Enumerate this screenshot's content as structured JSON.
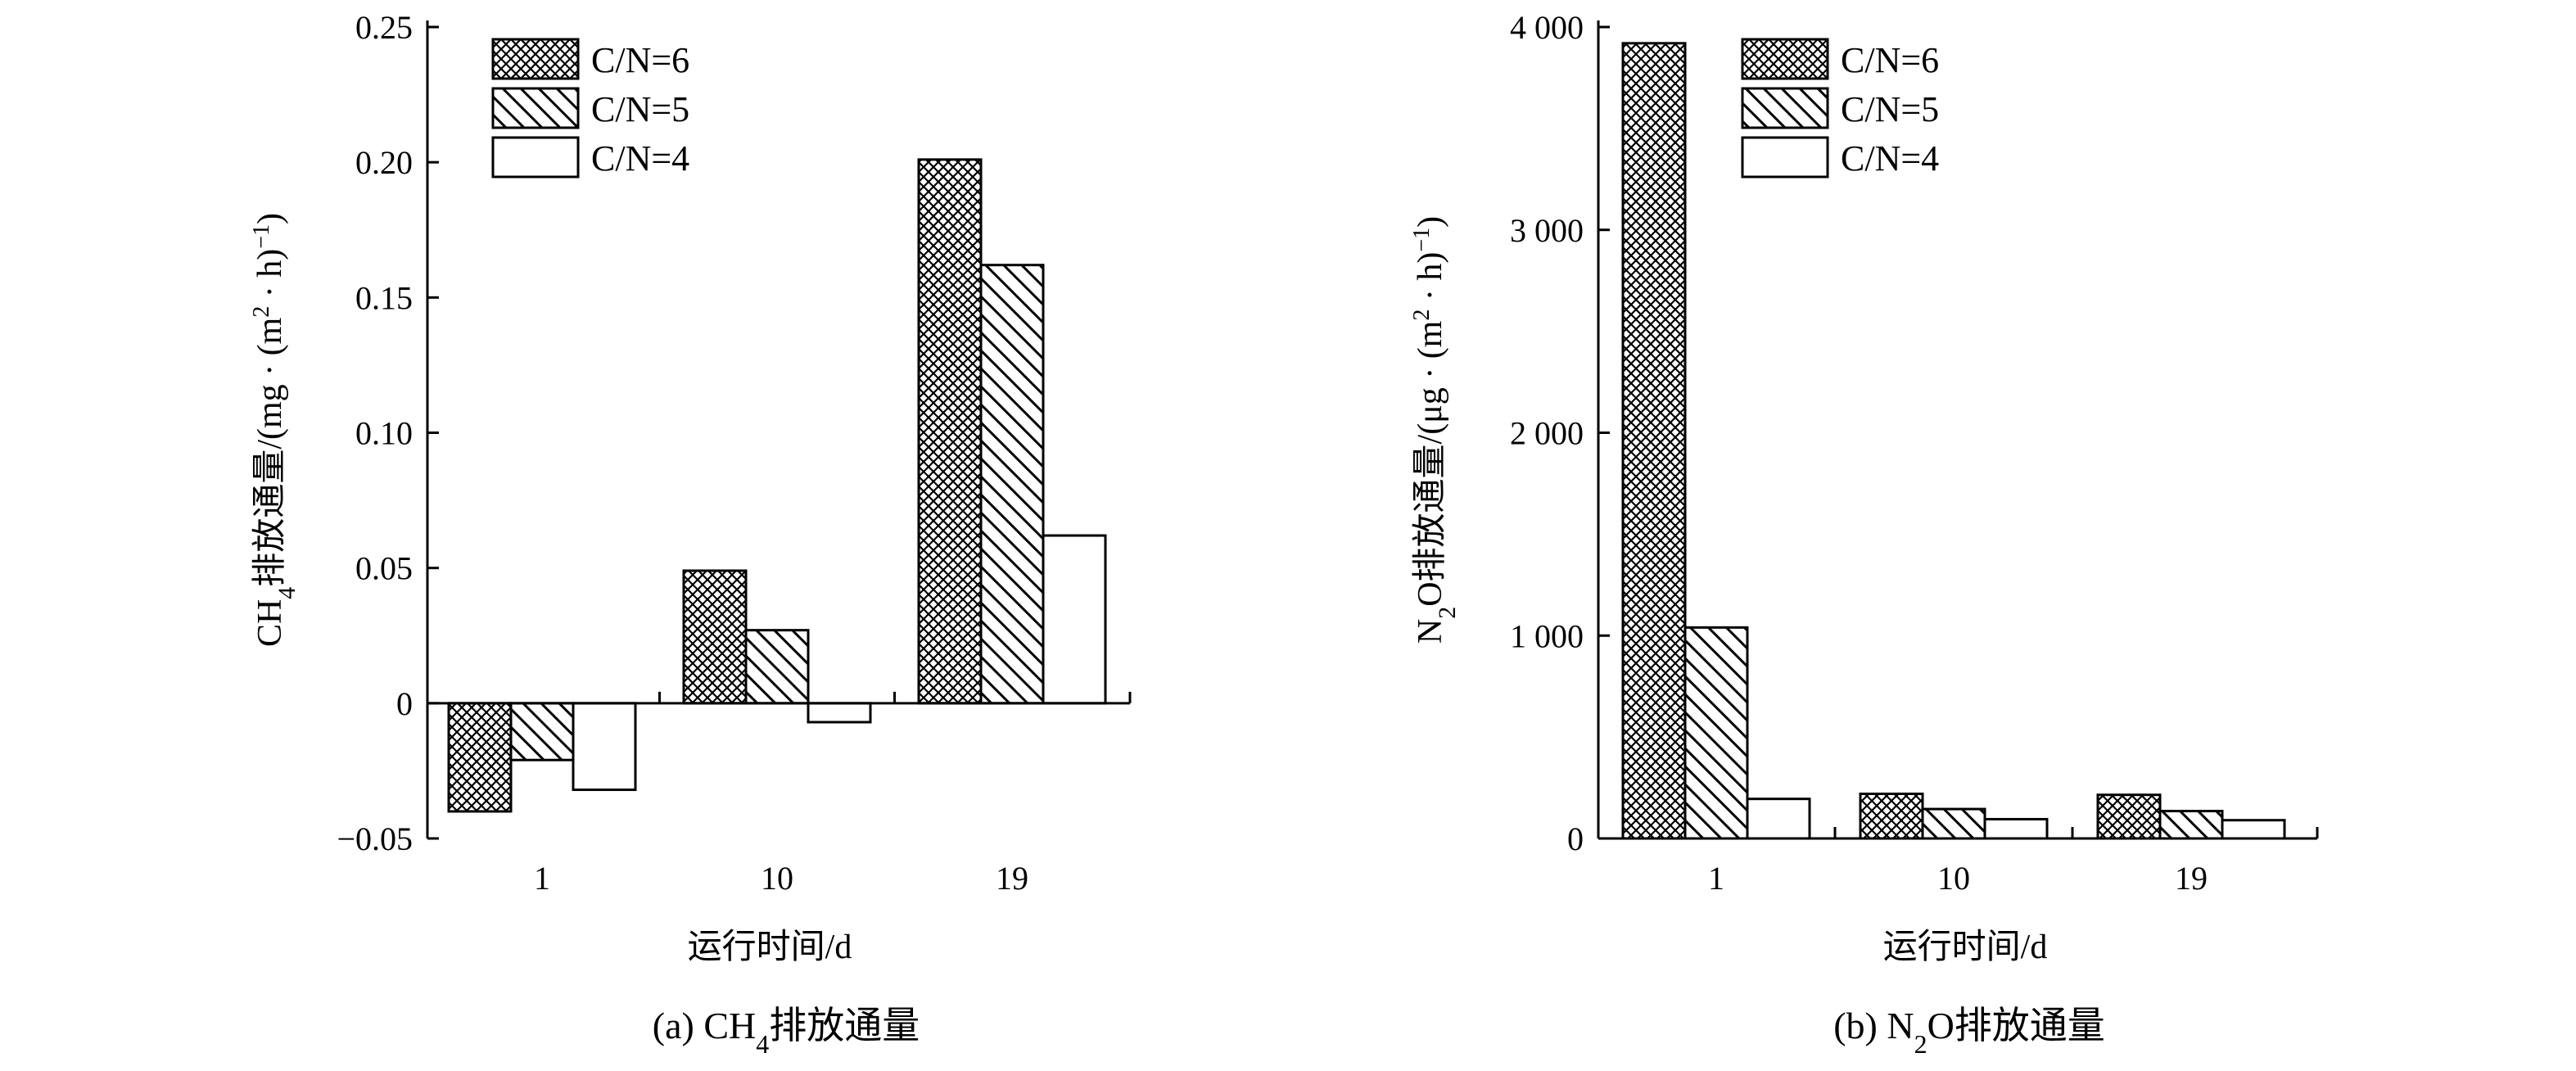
{
  "chart_data": [
    {
      "type": "bar",
      "panel": "a",
      "caption": {
        "prefix": "(a) CH",
        "sub": "4",
        "suffix": "排放通量"
      },
      "xlabel": "运行时间/d",
      "ylabel": {
        "pre": "CH",
        "sub": "4",
        "mid": "排放通量/(mg · (m",
        "sup": "2",
        "tail": " · h)",
        "sup2": "−1",
        "close": ")"
      },
      "categories": [
        "1",
        "10",
        "19"
      ],
      "ylim": [
        -0.05,
        0.25
      ],
      "yticks": [
        -0.05,
        0,
        0.05,
        0.1,
        0.15,
        0.2,
        0.25
      ],
      "ytick_labels": [
        "−0.05",
        "0",
        "0.05",
        "0.10",
        "0.15",
        "0.20",
        "0.25"
      ],
      "legend_position": "top-left",
      "series": [
        {
          "name": "C/N=6",
          "pattern": "crosshatch",
          "values": [
            -0.04,
            0.049,
            0.201
          ]
        },
        {
          "name": "C/N=5",
          "pattern": "diagonal",
          "values": [
            -0.021,
            0.027,
            0.162
          ]
        },
        {
          "name": "C/N=4",
          "pattern": "none",
          "values": [
            -0.032,
            -0.007,
            0.062
          ]
        }
      ]
    },
    {
      "type": "bar",
      "panel": "b",
      "caption": {
        "prefix": "(b) N",
        "sub": "2",
        "suffix": "O排放通量"
      },
      "xlabel": "运行时间/d",
      "ylabel": {
        "pre": "N",
        "sub": "2",
        "mid": "O排放通量/(μg · (m",
        "sup": "2",
        "tail": " · h)",
        "sup2": "−1",
        "close": ")"
      },
      "categories": [
        "1",
        "10",
        "19"
      ],
      "ylim": [
        0,
        4000
      ],
      "yticks": [
        0,
        1000,
        2000,
        3000,
        4000
      ],
      "ytick_labels": [
        "0",
        "1 000",
        "2 000",
        "3 000",
        "4 000"
      ],
      "legend_position": "top-left",
      "series": [
        {
          "name": "C/N=6",
          "pattern": "crosshatch",
          "values": [
            3920,
            220,
            215
          ]
        },
        {
          "name": "C/N=5",
          "pattern": "diagonal",
          "values": [
            1040,
            145,
            135
          ]
        },
        {
          "name": "C/N=4",
          "pattern": "none",
          "values": [
            195,
            95,
            90
          ]
        }
      ]
    }
  ]
}
